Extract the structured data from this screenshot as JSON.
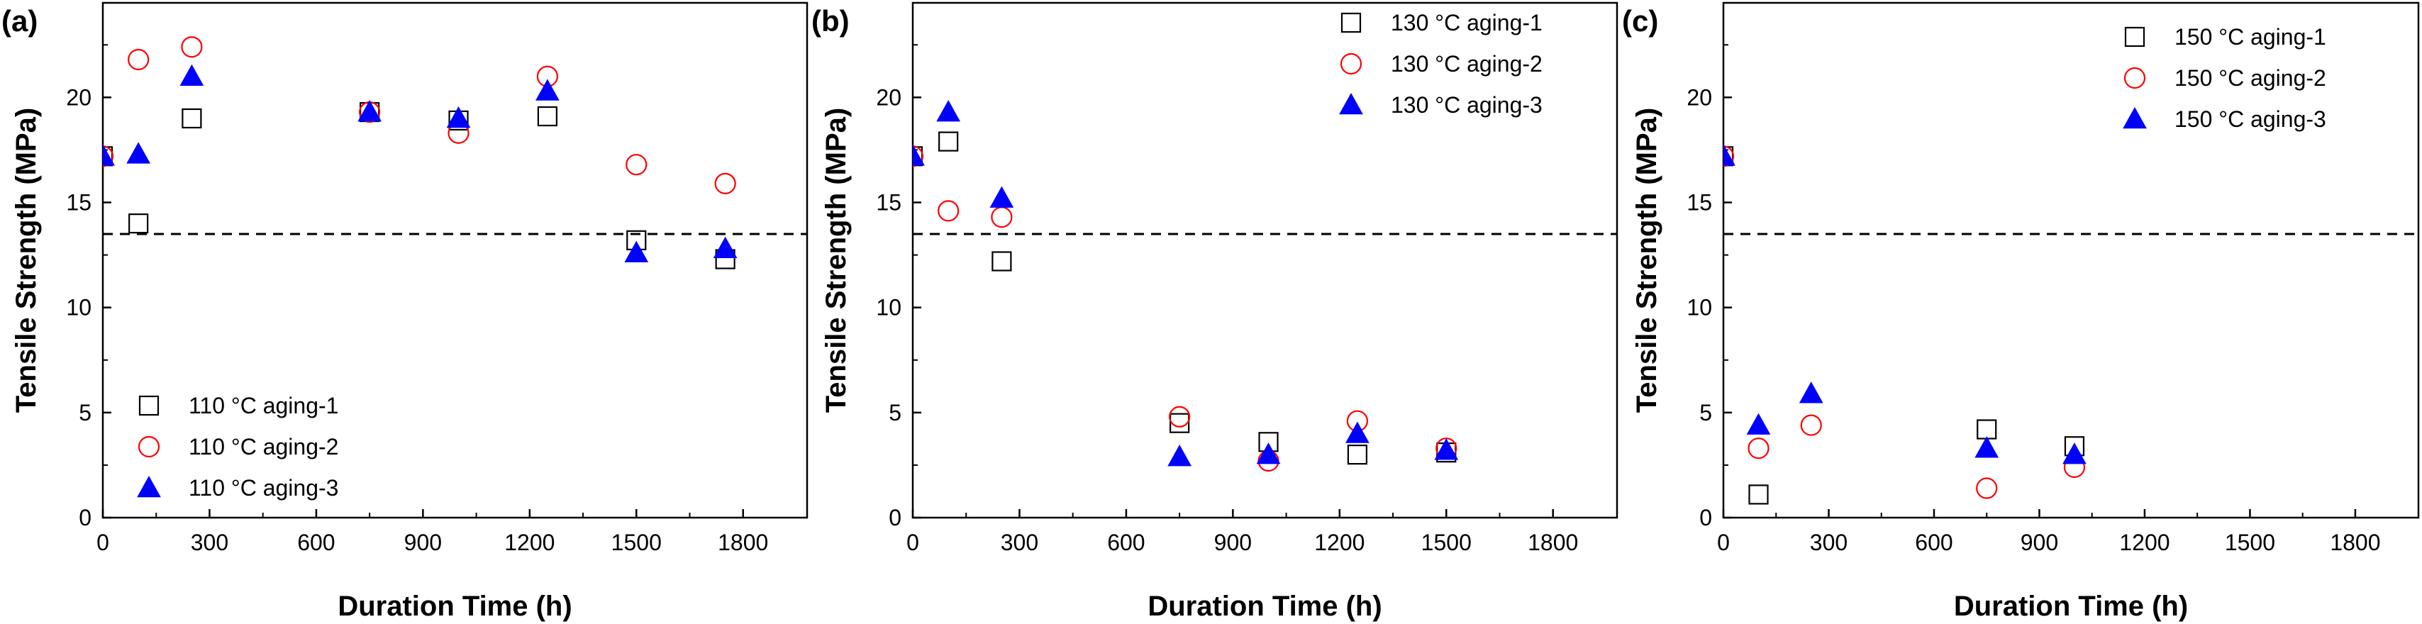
{
  "colors": {
    "series1": "#000000",
    "series2": "#ff0000",
    "series3": "#0000ff",
    "reference": "#000000"
  },
  "chart_data": [
    {
      "type": "scatter",
      "panel_label": "(a)",
      "xlabel": "Duration Time (h)",
      "ylabel": "Tensile Strength (MPa)",
      "xlim": [
        0,
        1980
      ],
      "ylim": [
        0,
        24.5
      ],
      "xticks": [
        0,
        300,
        600,
        900,
        1200,
        1500,
        1800
      ],
      "yticks": [
        0,
        5,
        10,
        15,
        20
      ],
      "reference_line_y": 13.5,
      "legend_position": "bottom-left",
      "series": [
        {
          "name": "110 °C aging-1",
          "marker": "open-square",
          "color": "#000000",
          "x": [
            0,
            100,
            250,
            750,
            1000,
            1250,
            1500,
            1750
          ],
          "y": [
            17.2,
            14.0,
            19.0,
            19.3,
            18.9,
            19.1,
            13.2,
            12.3
          ]
        },
        {
          "name": "110 °C aging-2",
          "marker": "open-circle",
          "color": "#ff0000",
          "x": [
            0,
            100,
            250,
            750,
            1000,
            1250,
            1500,
            1750
          ],
          "y": [
            17.2,
            21.8,
            22.4,
            19.3,
            18.3,
            21.0,
            16.8,
            15.9
          ]
        },
        {
          "name": "110 °C aging-3",
          "marker": "filled-triangle",
          "color": "#0000ff",
          "x": [
            0,
            100,
            250,
            750,
            1000,
            1250,
            1500,
            1750
          ],
          "y": [
            17.2,
            17.3,
            21.0,
            19.3,
            19.0,
            20.3,
            12.6,
            12.8
          ]
        }
      ]
    },
    {
      "type": "scatter",
      "panel_label": "(b)",
      "xlabel": "Duration Time (h)",
      "ylabel": "Tensile Strength (MPa)",
      "xlim": [
        0,
        1980
      ],
      "ylim": [
        0,
        24.5
      ],
      "xticks": [
        0,
        300,
        600,
        900,
        1200,
        1500,
        1800
      ],
      "yticks": [
        0,
        5,
        10,
        15,
        20
      ],
      "reference_line_y": 13.5,
      "legend_position": "top-right",
      "series": [
        {
          "name": "130 °C aging-1",
          "marker": "open-square",
          "color": "#000000",
          "x": [
            0,
            100,
            250,
            750,
            1000,
            1250,
            1500
          ],
          "y": [
            17.2,
            17.9,
            12.2,
            4.5,
            3.6,
            3.0,
            3.1
          ]
        },
        {
          "name": "130 °C aging-2",
          "marker": "open-circle",
          "color": "#ff0000",
          "x": [
            0,
            100,
            250,
            750,
            1000,
            1250,
            1500
          ],
          "y": [
            17.2,
            14.6,
            14.3,
            4.8,
            2.7,
            4.6,
            3.3
          ]
        },
        {
          "name": "130 °C aging-3",
          "marker": "filled-triangle",
          "color": "#0000ff",
          "x": [
            0,
            100,
            250,
            750,
            1000,
            1250,
            1500
          ],
          "y": [
            17.2,
            19.3,
            15.2,
            2.9,
            3.0,
            4.0,
            3.2
          ]
        }
      ]
    },
    {
      "type": "scatter",
      "panel_label": "(c)",
      "xlabel": "Duration Time (h)",
      "ylabel": "Tensile Strength (MPa)",
      "xlim": [
        0,
        1980
      ],
      "ylim": [
        0,
        24.5
      ],
      "xticks": [
        0,
        300,
        600,
        900,
        1200,
        1500,
        1800
      ],
      "yticks": [
        0,
        5,
        10,
        15,
        20
      ],
      "reference_line_y": 13.5,
      "legend_position": "top-right",
      "series": [
        {
          "name": "150 °C aging-1",
          "marker": "open-square",
          "color": "#000000",
          "x": [
            0,
            100,
            750,
            1000
          ],
          "y": [
            17.2,
            1.1,
            4.2,
            3.4
          ]
        },
        {
          "name": "150 °C aging-2",
          "marker": "open-circle",
          "color": "#ff0000",
          "x": [
            0,
            100,
            250,
            750,
            1000
          ],
          "y": [
            17.2,
            3.3,
            4.4,
            1.4,
            2.4
          ]
        },
        {
          "name": "150 °C aging-3",
          "marker": "filled-triangle",
          "color": "#0000ff",
          "x": [
            0,
            100,
            250,
            750,
            1000
          ],
          "y": [
            17.2,
            4.4,
            5.9,
            3.3,
            3.0
          ]
        }
      ]
    }
  ]
}
